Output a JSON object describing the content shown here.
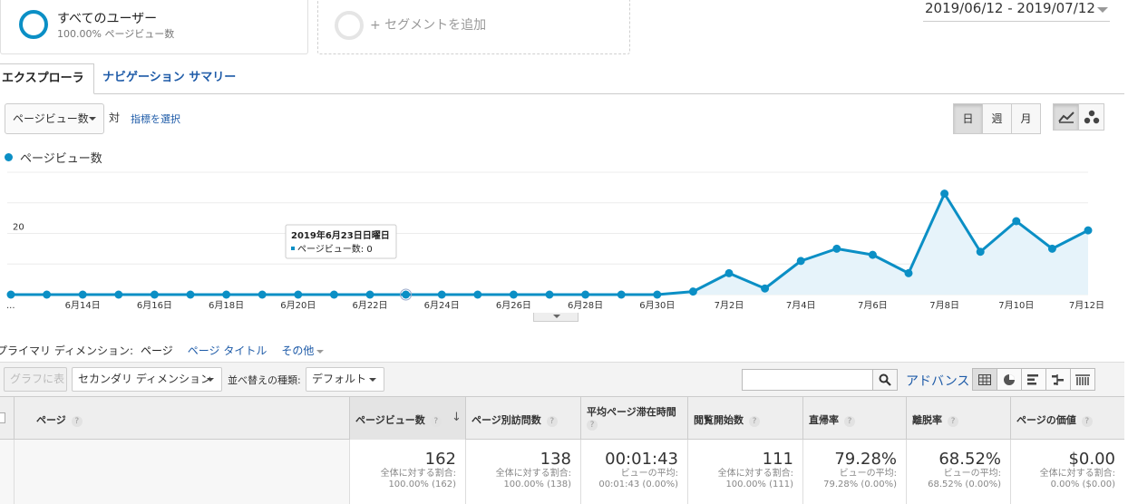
{
  "segments": {
    "all_users": {
      "title": "すべてのユーザー",
      "subtitle": "100.00% ページビュー数"
    },
    "add_segment": "+ セグメントを追加"
  },
  "date_range": "2019/06/12 - 2019/07/12",
  "tabs": [
    {
      "label": "エクスプローラ",
      "active": true
    },
    {
      "label": "ナビゲーション サマリー",
      "active": false
    }
  ],
  "metric": {
    "selected": "ページビュー数",
    "vs_label": "対",
    "choose_metric": "指標を選択"
  },
  "period_buttons": [
    {
      "label": "日",
      "active": true
    },
    {
      "label": "週",
      "active": false
    },
    {
      "label": "月",
      "active": false
    }
  ],
  "chart_type_icons": [
    {
      "icon": "line-chart-icon",
      "active": true
    },
    {
      "icon": "motion-chart-icon",
      "active": false
    }
  ],
  "accent_color": "#0b8fc5",
  "chart_data": {
    "type": "area",
    "series": [
      {
        "name": "ページビュー数",
        "values": [
          0,
          0,
          0,
          0,
          0,
          0,
          0,
          0,
          0,
          0,
          0,
          0,
          0,
          0,
          0,
          0,
          0,
          0,
          0,
          1,
          7,
          2,
          11,
          15,
          13,
          7,
          33,
          14,
          24,
          15,
          21
        ]
      }
    ],
    "x_tick_labels": [
      "...",
      "6月14日",
      "6月16日",
      "6月18日",
      "6月20日",
      "6月22日",
      "6月24日",
      "6月26日",
      "6月28日",
      "6月30日",
      "7月2日",
      "7月4日",
      "7月6日",
      "7月8日",
      "7月10日",
      "7月12日"
    ],
    "y_ticks": [
      "20",
      "40"
    ],
    "ylim": [
      0,
      40
    ],
    "grid": true,
    "tooltip": {
      "index": 11,
      "date": "2019年6月23日日曜日",
      "line": "ページビュー数: 0"
    }
  },
  "dimensions": {
    "label": "プライマリ ディメンション:",
    "current": "ページ",
    "links": [
      "ページ タイトル",
      "その他"
    ]
  },
  "toolbar": {
    "plot_rows": "グラフに表示",
    "secondary_dimension": "セカンダリ ディメンション",
    "sort_label": "並べ替えの種類:",
    "sort_value": "デフォルト",
    "search_value": "",
    "advanced": "アドバンス",
    "view_icons": [
      "table-view-icon",
      "pie-view-icon",
      "bar-view-icon",
      "comparison-view-icon",
      "pivot-view-icon"
    ]
  },
  "table": {
    "headers": [
      "ページ",
      "ページビュー数",
      "ページ別訪問数",
      "平均ページ滞在時間",
      "閲覧開始数",
      "直帰率",
      "離脱率",
      "ページの価値"
    ],
    "sort_arrow": "↓",
    "summary": [
      {
        "value": "162",
        "line1": "全体に対する割合:",
        "line2": "100.00% (162)"
      },
      {
        "value": "138",
        "line1": "全体に対する割合:",
        "line2": "100.00% (138)"
      },
      {
        "value": "00:01:43",
        "line1": "ビューの平均:",
        "line2": "00:01:43 (0.00%)"
      },
      {
        "value": "111",
        "line1": "全体に対する割合:",
        "line2": "100.00% (111)"
      },
      {
        "value": "79.28%",
        "line1": "ビューの平均:",
        "line2": "79.28% (0.00%)"
      },
      {
        "value": "68.52%",
        "line1": "ビューの平均:",
        "line2": "68.52% (0.00%)"
      },
      {
        "value": "$0.00",
        "line1": "全体に対する割合:",
        "line2": "0.00% ($0.00)"
      }
    ]
  }
}
